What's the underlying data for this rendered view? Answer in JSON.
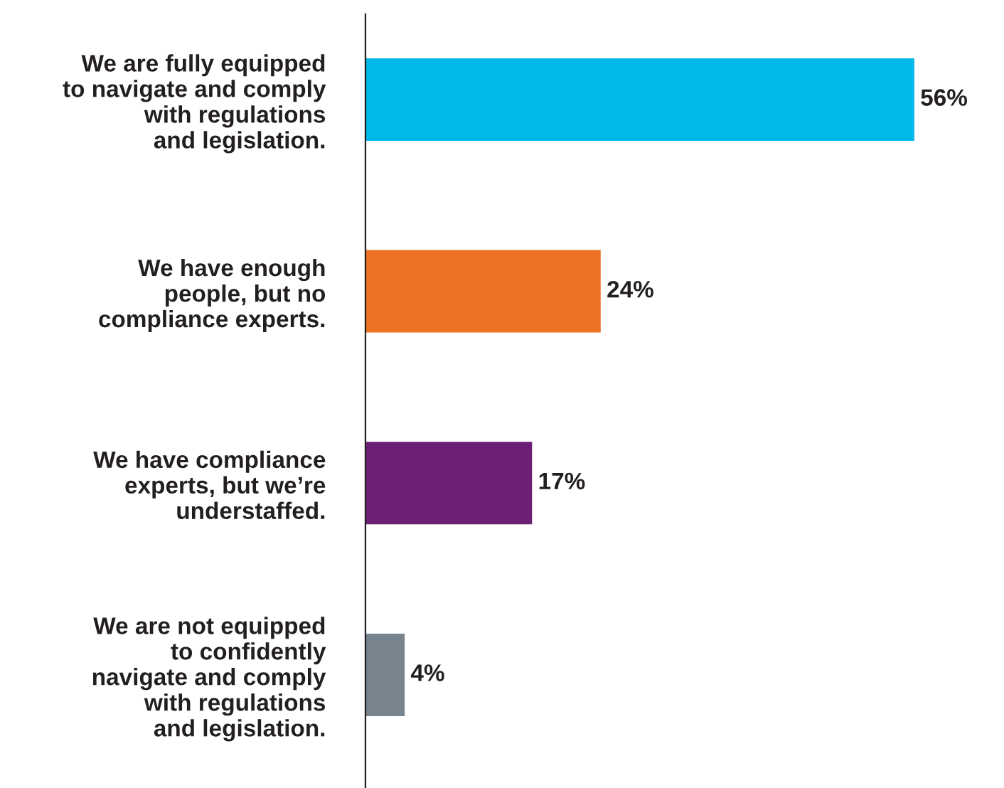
{
  "chart_data": {
    "type": "bar",
    "orientation": "horizontal",
    "categories": [
      "We are fully equipped\nto navigate and comply\nwith regulations\nand legislation.",
      "We have enough\npeople, but no\ncompliance experts.",
      "We have compliance\nexperts, but we’re\nunderstaffed.",
      "We are not equipped\nto confidently\nnavigate and comply\nwith regulations\nand legislation."
    ],
    "values": [
      56,
      24,
      17,
      4
    ],
    "colors": [
      "#00b8ea",
      "#ee7123",
      "#6c2075",
      "#78848d"
    ],
    "value_labels": [
      "56%",
      "24%",
      "17%",
      "4%"
    ],
    "grid": false,
    "legend": false
  }
}
